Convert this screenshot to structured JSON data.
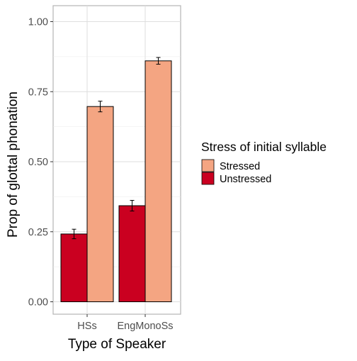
{
  "chart_data": {
    "type": "bar",
    "xlabel": "Type of Speaker",
    "ylabel": "Prop of glottal phonation",
    "categories": [
      "HSs",
      "EngMonoSs"
    ],
    "ylim": [
      0,
      1.05
    ],
    "yticks": [
      "0.00",
      "0.25",
      "0.50",
      "0.75",
      "1.00"
    ],
    "ytick_values": [
      0,
      0.25,
      0.5,
      0.75,
      1.0
    ],
    "grid": true,
    "legend": {
      "title": "Stress of initial syllable",
      "placement": "right",
      "entries": [
        "Stressed",
        "Unstressed"
      ]
    },
    "series": [
      {
        "name": "Unstressed",
        "color": "#ca0020",
        "values": [
          0.242,
          0.343
        ],
        "err": [
          0.017,
          0.019
        ]
      },
      {
        "name": "Stressed",
        "color": "#f4a582",
        "values": [
          0.697,
          0.86
        ],
        "err": [
          0.019,
          0.012
        ]
      }
    ]
  }
}
